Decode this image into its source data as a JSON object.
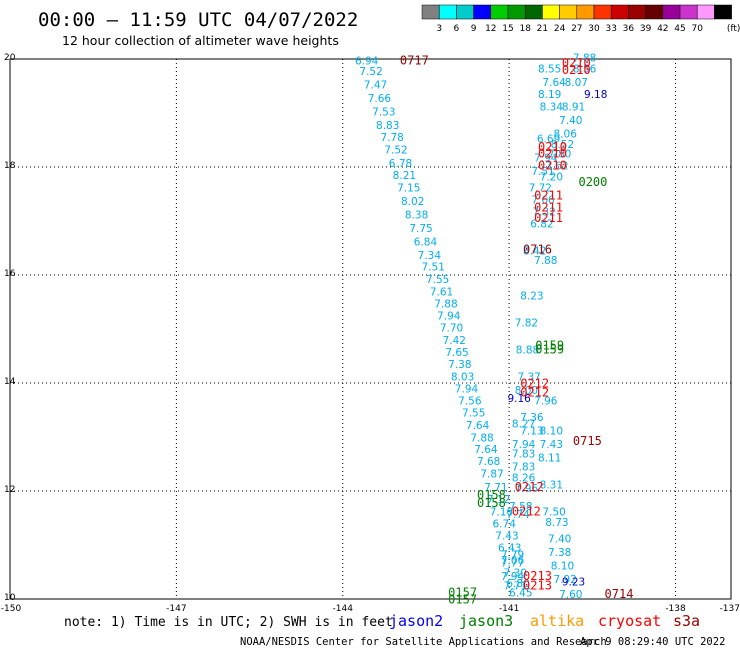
{
  "chart_data": {
    "type": "scatter",
    "title": "00:00 – 11:59 UTC 04/07/2022",
    "subtitle": "12 hour collection of altimeter wave heights",
    "xlim": [
      -150,
      -137
    ],
    "ylim": [
      10,
      20
    ],
    "x_ticks": [
      "-150",
      "-147",
      "-144",
      "-141",
      "-138",
      "-137"
    ],
    "y_ticks": [
      "20",
      "18",
      "16",
      "14",
      "12",
      "10"
    ],
    "grid": true,
    "color_scale": {
      "unit": "(ft)",
      "colors": [
        "#808080",
        "#00ffff",
        "#00cccc",
        "#0000ff",
        "#00cc00",
        "#009900",
        "#006600",
        "#ffff00",
        "#ffcc00",
        "#ff9900",
        "#ff3300",
        "#cc0000",
        "#990000",
        "#660000",
        "#990099",
        "#cc33cc",
        "#ff99ff",
        "#000000"
      ],
      "labels": [
        "3",
        "6",
        "9",
        "12",
        "15",
        "18",
        "21",
        "24",
        "27",
        "30",
        "33",
        "36",
        "39",
        "42",
        "45",
        "70"
      ]
    },
    "points": [
      {
        "lon": -143.78,
        "lat": 19.9,
        "v": "6.94",
        "c": "#00aeef"
      },
      {
        "lon": -143.7,
        "lat": 19.7,
        "v": "7.52",
        "c": "#00aeef"
      },
      {
        "lon": -143.62,
        "lat": 19.45,
        "v": "7.47",
        "c": "#00aeef"
      },
      {
        "lon": -143.55,
        "lat": 19.2,
        "v": "7.66",
        "c": "#00aeef"
      },
      {
        "lon": -143.47,
        "lat": 18.95,
        "v": "7.53",
        "c": "#00aeef"
      },
      {
        "lon": -143.4,
        "lat": 18.7,
        "v": "8.83",
        "c": "#00aeef"
      },
      {
        "lon": -143.32,
        "lat": 18.48,
        "v": "7.78",
        "c": "#00aeef"
      },
      {
        "lon": -143.25,
        "lat": 18.25,
        "v": "7.52",
        "c": "#00aeef"
      },
      {
        "lon": -143.17,
        "lat": 18.0,
        "v": "6.78",
        "c": "#00aeef"
      },
      {
        "lon": -143.1,
        "lat": 17.78,
        "v": "8.21",
        "c": "#00aeef"
      },
      {
        "lon": -143.02,
        "lat": 17.55,
        "v": "7.15",
        "c": "#00aeef"
      },
      {
        "lon": -142.95,
        "lat": 17.3,
        "v": "8.02",
        "c": "#00aeef"
      },
      {
        "lon": -142.88,
        "lat": 17.05,
        "v": "8.38",
        "c": "#00aeef"
      },
      {
        "lon": -142.8,
        "lat": 16.8,
        "v": "7.75",
        "c": "#00aeef"
      },
      {
        "lon": -142.72,
        "lat": 16.55,
        "v": "6.84",
        "c": "#00aeef"
      },
      {
        "lon": -142.65,
        "lat": 16.3,
        "v": "7.34",
        "c": "#00aeef"
      },
      {
        "lon": -142.58,
        "lat": 16.08,
        "v": "7.51",
        "c": "#00aeef"
      },
      {
        "lon": -142.5,
        "lat": 15.85,
        "v": "7.55",
        "c": "#00aeef"
      },
      {
        "lon": -142.43,
        "lat": 15.62,
        "v": "7.61",
        "c": "#00aeef"
      },
      {
        "lon": -142.35,
        "lat": 15.4,
        "v": "7.88",
        "c": "#00aeef"
      },
      {
        "lon": -142.3,
        "lat": 15.18,
        "v": "7.94",
        "c": "#00aeef"
      },
      {
        "lon": -142.25,
        "lat": 14.95,
        "v": "7.70",
        "c": "#00aeef"
      },
      {
        "lon": -142.2,
        "lat": 14.72,
        "v": "7.42",
        "c": "#00aeef"
      },
      {
        "lon": -142.15,
        "lat": 14.5,
        "v": "7.65",
        "c": "#00aeef"
      },
      {
        "lon": -142.1,
        "lat": 14.28,
        "v": "7.38",
        "c": "#00aeef"
      },
      {
        "lon": -142.05,
        "lat": 14.05,
        "v": "8.03",
        "c": "#00aeef"
      },
      {
        "lon": -141.98,
        "lat": 13.82,
        "v": "7.94",
        "c": "#00aeef"
      },
      {
        "lon": -141.92,
        "lat": 13.6,
        "v": "7.56",
        "c": "#00aeef"
      },
      {
        "lon": -141.85,
        "lat": 13.38,
        "v": "7.55",
        "c": "#00aeef"
      },
      {
        "lon": -141.78,
        "lat": 13.15,
        "v": "7.64",
        "c": "#00aeef"
      },
      {
        "lon": -141.7,
        "lat": 12.92,
        "v": "7.88",
        "c": "#00aeef"
      },
      {
        "lon": -141.63,
        "lat": 12.7,
        "v": "7.64",
        "c": "#00aeef"
      },
      {
        "lon": -141.58,
        "lat": 12.48,
        "v": "7.68",
        "c": "#00aeef"
      },
      {
        "lon": -141.52,
        "lat": 12.25,
        "v": "7.87",
        "c": "#00aeef"
      },
      {
        "lon": -141.45,
        "lat": 12.0,
        "v": "7.71",
        "c": "#00aeef"
      },
      {
        "lon": -141.4,
        "lat": 11.78,
        "v": "7.12",
        "c": "#00aeef"
      },
      {
        "lon": -141.35,
        "lat": 11.55,
        "v": "7.16",
        "c": "#00aeef"
      },
      {
        "lon": -141.3,
        "lat": 11.32,
        "v": "6.74",
        "c": "#00aeef"
      },
      {
        "lon": -141.25,
        "lat": 11.1,
        "v": "7.43",
        "c": "#00aeef"
      },
      {
        "lon": -141.2,
        "lat": 10.88,
        "v": "6.43",
        "c": "#00aeef"
      },
      {
        "lon": -141.15,
        "lat": 10.65,
        "v": "7.06",
        "c": "#00aeef"
      },
      {
        "lon": -141.1,
        "lat": 10.42,
        "v": "7.30",
        "c": "#00aeef"
      },
      {
        "lon": -141.05,
        "lat": 10.22,
        "v": "6.80",
        "c": "#00aeef"
      },
      {
        "lon": -141.0,
        "lat": 10.05,
        "v": "6.45",
        "c": "#00aeef"
      },
      {
        "lon": -140.48,
        "lat": 19.75,
        "v": "8.55",
        "c": "#00aeef"
      },
      {
        "lon": -140.4,
        "lat": 19.5,
        "v": "7.64",
        "c": "#00aeef"
      },
      {
        "lon": -140.48,
        "lat": 19.28,
        "v": "8.19",
        "c": "#00aeef"
      },
      {
        "lon": -140.45,
        "lat": 19.05,
        "v": "8.34",
        "c": "#00aeef"
      },
      {
        "lon": -140.5,
        "lat": 18.45,
        "v": "6.69",
        "c": "#00aeef"
      },
      {
        "lon": -140.55,
        "lat": 18.1,
        "v": "7.94",
        "c": "#00aeef"
      },
      {
        "lon": -140.6,
        "lat": 17.85,
        "v": "7.51",
        "c": "#00aeef"
      },
      {
        "lon": -140.65,
        "lat": 17.55,
        "v": "7.72",
        "c": "#00aeef"
      },
      {
        "lon": -140.6,
        "lat": 17.32,
        "v": "7.66",
        "c": "#00aeef"
      },
      {
        "lon": -140.58,
        "lat": 17.1,
        "v": "7.32",
        "c": "#00aeef"
      },
      {
        "lon": -140.62,
        "lat": 16.88,
        "v": "6.82",
        "c": "#00aeef"
      },
      {
        "lon": -140.75,
        "lat": 16.38,
        "v": "8.42",
        "c": "#00aeef"
      },
      {
        "lon": -140.8,
        "lat": 15.55,
        "v": "8.23",
        "c": "#00aeef"
      },
      {
        "lon": -140.9,
        "lat": 15.05,
        "v": "7.82",
        "c": "#00aeef"
      },
      {
        "lon": -140.88,
        "lat": 14.55,
        "v": "8.88",
        "c": "#00aeef"
      },
      {
        "lon": -140.85,
        "lat": 14.05,
        "v": "7.37",
        "c": "#00aeef"
      },
      {
        "lon": -140.9,
        "lat": 13.8,
        "v": "8.00",
        "c": "#00aeef"
      },
      {
        "lon": -140.8,
        "lat": 13.3,
        "v": "7.36",
        "c": "#00aeef"
      },
      {
        "lon": -140.95,
        "lat": 13.18,
        "v": "8.27",
        "c": "#00aeef"
      },
      {
        "lon": -140.8,
        "lat": 13.05,
        "v": "7.13",
        "c": "#00aeef"
      },
      {
        "lon": -140.95,
        "lat": 12.8,
        "v": "7.94",
        "c": "#00aeef"
      },
      {
        "lon": -140.95,
        "lat": 12.62,
        "v": "7.83",
        "c": "#00aeef"
      },
      {
        "lon": -140.95,
        "lat": 12.38,
        "v": "7.83",
        "c": "#00aeef"
      },
      {
        "lon": -140.95,
        "lat": 12.18,
        "v": "8.26",
        "c": "#00aeef"
      },
      {
        "lon": -140.9,
        "lat": 11.98,
        "v": "7.96",
        "c": "#00aeef"
      },
      {
        "lon": -141.0,
        "lat": 11.65,
        "v": "7.58",
        "c": "#00aeef"
      },
      {
        "lon": -141.05,
        "lat": 11.5,
        "v": "7.74",
        "c": "#00aeef"
      },
      {
        "lon": -141.15,
        "lat": 10.75,
        "v": "7.79",
        "c": "#00aeef"
      },
      {
        "lon": -141.15,
        "lat": 10.6,
        "v": "7.77",
        "c": "#00aeef"
      },
      {
        "lon": -141.15,
        "lat": 10.35,
        "v": "7.94",
        "c": "#00aeef"
      },
      {
        "lon": -141.1,
        "lat": 10.18,
        "v": "7.71",
        "c": "#00aeef"
      },
      {
        "lon": -139.85,
        "lat": 19.95,
        "v": "7.88",
        "c": "#00aeef"
      },
      {
        "lon": -139.85,
        "lat": 19.75,
        "v": "8.56",
        "c": "#00aeef"
      },
      {
        "lon": -140.0,
        "lat": 19.5,
        "v": "8.07",
        "c": "#00aeef"
      },
      {
        "lon": -140.05,
        "lat": 19.05,
        "v": "8.91",
        "c": "#00aeef"
      },
      {
        "lon": -140.1,
        "lat": 18.8,
        "v": "7.40",
        "c": "#00aeef"
      },
      {
        "lon": -140.2,
        "lat": 18.55,
        "v": "8.06",
        "c": "#00aeef"
      },
      {
        "lon": -140.25,
        "lat": 18.35,
        "v": "8.52",
        "c": "#00aeef"
      },
      {
        "lon": -140.3,
        "lat": 18.18,
        "v": "7.80",
        "c": "#00aeef"
      },
      {
        "lon": -140.35,
        "lat": 17.95,
        "v": "7.62",
        "c": "#00aeef"
      },
      {
        "lon": -140.45,
        "lat": 17.75,
        "v": "7.20",
        "c": "#00aeef"
      },
      {
        "lon": -140.55,
        "lat": 16.2,
        "v": "7.88",
        "c": "#00aeef"
      },
      {
        "lon": -140.55,
        "lat": 13.6,
        "v": "7.96",
        "c": "#00aeef"
      },
      {
        "lon": -140.48,
        "lat": 12.55,
        "v": "8.11",
        "c": "#00aeef"
      },
      {
        "lon": -140.45,
        "lat": 12.05,
        "v": "8.31",
        "c": "#00aeef"
      },
      {
        "lon": -140.4,
        "lat": 11.55,
        "v": "7.50",
        "c": "#00aeef"
      },
      {
        "lon": -140.35,
        "lat": 11.35,
        "v": "8.73",
        "c": "#00aeef"
      },
      {
        "lon": -140.3,
        "lat": 11.05,
        "v": "7.40",
        "c": "#00aeef"
      },
      {
        "lon": -140.3,
        "lat": 10.8,
        "v": "7.38",
        "c": "#00aeef"
      },
      {
        "lon": -140.25,
        "lat": 10.55,
        "v": "8.10",
        "c": "#00aeef"
      },
      {
        "lon": -140.2,
        "lat": 10.3,
        "v": "7.92",
        "c": "#00aeef"
      },
      {
        "lon": -140.1,
        "lat": 10.02,
        "v": "7.60",
        "c": "#00aeef"
      },
      {
        "lon": -140.45,
        "lat": 12.8,
        "v": "7.43",
        "c": "#00aeef"
      },
      {
        "lon": -140.45,
        "lat": 13.05,
        "v": "8.10",
        "c": "#00aeef"
      },
      {
        "lon": -139.65,
        "lat": 19.28,
        "v": "9.18",
        "c": "#0000cc"
      },
      {
        "lon": -141.03,
        "lat": 13.65,
        "v": "9.16",
        "c": "#0000cc"
      },
      {
        "lon": -140.05,
        "lat": 10.25,
        "v": "9.23",
        "c": "#0000cc"
      }
    ],
    "time_labels": [
      {
        "lon": -142.97,
        "lat": 19.9,
        "t": "0717",
        "c": "#990000"
      },
      {
        "lon": -140.75,
        "lat": 16.4,
        "t": "0716",
        "c": "#990000"
      },
      {
        "lon": -139.85,
        "lat": 12.85,
        "t": "0715",
        "c": "#990000"
      },
      {
        "lon": -139.28,
        "lat": 10.02,
        "t": "0714",
        "c": "#990000"
      },
      {
        "lon": -140.05,
        "lat": 19.85,
        "t": "0210",
        "c": "#ff0000"
      },
      {
        "lon": -140.05,
        "lat": 19.72,
        "t": "0210",
        "c": "#ff0000"
      },
      {
        "lon": -140.48,
        "lat": 18.3,
        "t": "0210",
        "c": "#ff0000"
      },
      {
        "lon": -140.48,
        "lat": 18.18,
        "t": "0210",
        "c": "#ff0000"
      },
      {
        "lon": -140.48,
        "lat": 17.95,
        "t": "0210",
        "c": "#ff0000"
      },
      {
        "lon": -140.55,
        "lat": 17.4,
        "t": "0211",
        "c": "#ff0000"
      },
      {
        "lon": -140.55,
        "lat": 17.18,
        "t": "0211",
        "c": "#ff0000"
      },
      {
        "lon": -140.55,
        "lat": 16.98,
        "t": "0211",
        "c": "#ff0000"
      },
      {
        "lon": -140.8,
        "lat": 13.92,
        "t": "0212",
        "c": "#ff0000"
      },
      {
        "lon": -140.8,
        "lat": 13.75,
        "t": "0212",
        "c": "#ff0000"
      },
      {
        "lon": -140.9,
        "lat": 12.0,
        "t": "0212",
        "c": "#ff0000"
      },
      {
        "lon": -140.95,
        "lat": 11.55,
        "t": "0212",
        "c": "#ff0000"
      },
      {
        "lon": -140.75,
        "lat": 10.35,
        "t": "0213",
        "c": "#ff0000"
      },
      {
        "lon": -140.75,
        "lat": 10.18,
        "t": "0213",
        "c": "#ff0000"
      },
      {
        "lon": -139.75,
        "lat": 17.65,
        "t": "0200",
        "c": "#008000"
      },
      {
        "lon": -140.53,
        "lat": 14.62,
        "t": "0159",
        "c": "#008000"
      },
      {
        "lon": -140.53,
        "lat": 14.55,
        "t": "0159",
        "c": "#008000"
      },
      {
        "lon": -141.58,
        "lat": 11.85,
        "t": "0158",
        "c": "#008000"
      },
      {
        "lon": -141.58,
        "lat": 11.7,
        "t": "0158",
        "c": "#008000"
      },
      {
        "lon": -142.1,
        "lat": 10.05,
        "t": "0157",
        "c": "#008000"
      },
      {
        "lon": -142.1,
        "lat": 9.92,
        "t": "0157",
        "c": "#008000"
      }
    ],
    "legend": [
      {
        "name": "jason2",
        "color": "#0000ff"
      },
      {
        "name": "jason3",
        "color": "#008000"
      },
      {
        "name": "altika",
        "color": "#ff9900"
      },
      {
        "name": "cryosat",
        "color": "#ff0000"
      },
      {
        "name": "s3a",
        "color": "#990000"
      }
    ]
  },
  "note": "note: 1) Time is in UTC; 2) SWH is in feet",
  "footer": {
    "credit": "NOAA/NESDIS Center for Satellite Applications and Research",
    "timestamp": "Apr  9 08:29:40 UTC 2022"
  }
}
